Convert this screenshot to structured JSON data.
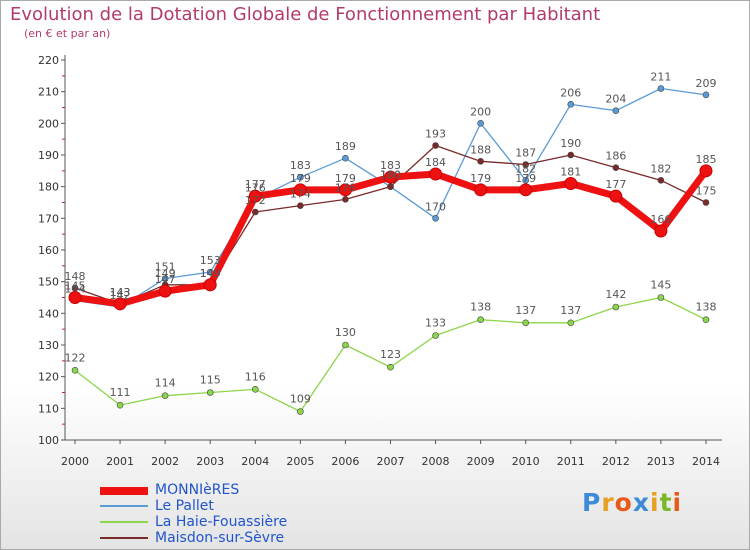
{
  "header": {
    "title": "Evolution de la Dotation Globale de Fonctionnement par Habitant",
    "subtitle": "(en € et par an)"
  },
  "logo": {
    "text": "Proxiti",
    "letters": [
      "P",
      "r",
      "o",
      "x",
      "i",
      "t",
      "i"
    ],
    "colors": [
      "#3b8bd8",
      "#e8a022",
      "#e85a1a",
      "#3b8bd8",
      "#e8a022",
      "#7ab828",
      "#e85a1a"
    ]
  },
  "chart_data": {
    "type": "line",
    "title": "Evolution de la Dotation Globale de Fonctionnement par Habitant",
    "subtitle": "(en € et par an)",
    "categories": [
      "2000",
      "2001",
      "2002",
      "2003",
      "2004",
      "2005",
      "2006",
      "2007",
      "2008",
      "2009",
      "2010",
      "2011",
      "2012",
      "2013",
      "2014"
    ],
    "ylim": [
      100,
      220
    ],
    "yticks": [
      100,
      110,
      120,
      130,
      140,
      150,
      160,
      170,
      180,
      190,
      200,
      210,
      220
    ],
    "grid": false,
    "legend_position": "bottom-left",
    "series": [
      {
        "name": "MONNIèRES",
        "color": "#ee1111",
        "values": [
          145,
          143,
          147,
          149,
          177,
          179,
          179,
          183,
          184,
          179,
          179,
          181,
          177,
          166,
          185
        ]
      },
      {
        "name": "Le Pallet",
        "color": "#5b9bd5",
        "values": [
          144,
          142,
          151,
          153,
          176,
          183,
          189,
          180,
          170,
          200,
          182,
          206,
          204,
          211,
          209
        ]
      },
      {
        "name": "La Haie-Fouassière",
        "color": "#8bd64a",
        "values": [
          122,
          111,
          114,
          115,
          116,
          109,
          130,
          123,
          133,
          138,
          137,
          137,
          142,
          145,
          138
        ]
      },
      {
        "name": "Maisdon-sur-Sèvre",
        "color": "#7a2a2a",
        "values": [
          148,
          143,
          149,
          149,
          172,
          174,
          176,
          180,
          193,
          188,
          187,
          190,
          186,
          182,
          175
        ]
      }
    ]
  }
}
